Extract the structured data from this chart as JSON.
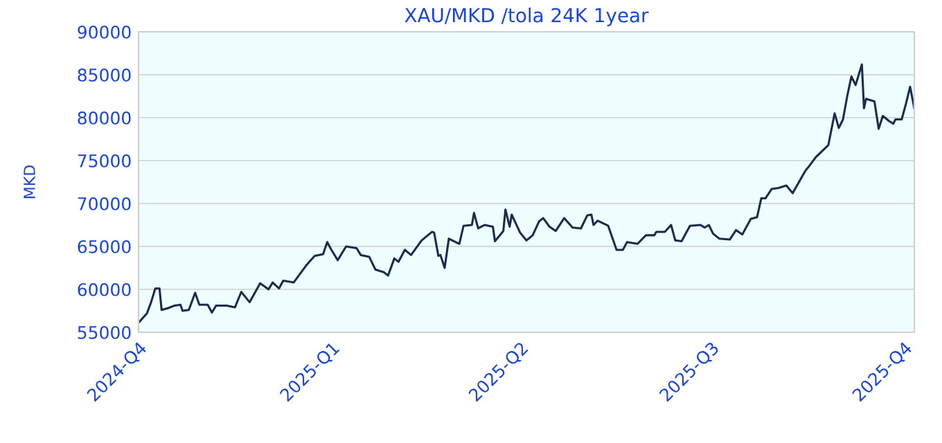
{
  "chart_data": {
    "type": "line",
    "title": "XAU/MKD /tola 24K 1year",
    "ylabel": "MKD",
    "x": [
      "2024-10-01",
      "2024-10-05",
      "2024-10-07",
      "2024-10-09",
      "2024-10-11",
      "2024-10-12",
      "2024-10-15",
      "2024-10-18",
      "2024-10-21",
      "2024-10-22",
      "2024-10-25",
      "2024-10-28",
      "2024-10-30",
      "2024-11-03",
      "2024-11-05",
      "2024-11-07",
      "2024-11-12",
      "2024-11-16",
      "2024-11-19",
      "2024-11-23",
      "2024-11-28",
      "2024-12-02",
      "2024-12-04",
      "2024-12-07",
      "2024-12-09",
      "2024-12-14",
      "2024-12-20",
      "2024-12-24",
      "2024-12-28",
      "2024-12-30",
      "2025-01-01",
      "2025-01-04",
      "2025-01-08",
      "2025-01-13",
      "2025-01-15",
      "2025-01-19",
      "2025-01-22",
      "2025-01-26",
      "2025-01-28",
      "2025-01-31",
      "2025-02-02",
      "2025-02-05",
      "2025-02-08",
      "2025-02-13",
      "2025-02-18",
      "2025-02-19",
      "2025-02-21",
      "2025-02-22",
      "2025-02-24",
      "2025-02-26",
      "2025-03-03",
      "2025-03-05",
      "2025-03-09",
      "2025-03-10",
      "2025-03-12",
      "2025-03-15",
      "2025-03-19",
      "2025-03-20",
      "2025-03-24",
      "2025-03-25",
      "2025-03-27",
      "2025-03-28",
      "2025-04-01",
      "2025-04-04",
      "2025-04-07",
      "2025-04-10",
      "2025-04-12",
      "2025-04-15",
      "2025-04-18",
      "2025-04-22",
      "2025-04-26",
      "2025-04-30",
      "2025-05-03",
      "2025-05-05",
      "2025-05-06",
      "2025-05-08",
      "2025-05-13",
      "2025-05-15",
      "2025-05-17",
      "2025-05-20",
      "2025-05-22",
      "2025-05-27",
      "2025-05-31",
      "2025-06-04",
      "2025-06-05",
      "2025-06-09",
      "2025-06-12",
      "2025-06-14",
      "2025-06-17",
      "2025-06-21",
      "2025-06-26",
      "2025-06-28",
      "2025-06-30",
      "2025-07-02",
      "2025-07-05",
      "2025-07-10",
      "2025-07-13",
      "2025-07-16",
      "2025-07-20",
      "2025-07-23",
      "2025-07-25",
      "2025-07-27",
      "2025-07-30",
      "2025-08-02",
      "2025-08-06",
      "2025-08-09",
      "2025-08-12",
      "2025-08-15",
      "2025-08-17",
      "2025-08-20",
      "2025-08-23",
      "2025-08-26",
      "2025-08-29",
      "2025-08-31",
      "2025-09-02",
      "2025-09-04",
      "2025-09-06",
      "2025-09-08",
      "2025-09-11",
      "2025-09-12",
      "2025-09-13",
      "2025-09-17",
      "2025-09-19",
      "2025-09-21",
      "2025-09-24",
      "2025-09-26",
      "2025-09-27",
      "2025-09-30",
      "2025-10-02",
      "2025-10-04",
      "2025-10-06"
    ],
    "series": [
      {
        "color": "#1a2b4c",
        "values": [
          56100,
          57200,
          58500,
          60100,
          60100,
          57600,
          57800,
          58100,
          58200,
          57500,
          57600,
          59600,
          58200,
          58200,
          57300,
          58100,
          58100,
          57900,
          59700,
          58500,
          60700,
          60000,
          60800,
          60100,
          61000,
          60800,
          62800,
          63900,
          64100,
          65500,
          64600,
          63400,
          65000,
          64800,
          64000,
          63800,
          62300,
          62000,
          61600,
          63600,
          63200,
          64600,
          64000,
          65700,
          66700,
          66600,
          63900,
          64000,
          62500,
          65900,
          65300,
          67400,
          67500,
          68900,
          67100,
          67500,
          67300,
          65600,
          66800,
          69300,
          67300,
          68700,
          66600,
          65700,
          66300,
          67900,
          68300,
          67300,
          66800,
          68300,
          67200,
          67100,
          68600,
          68700,
          67500,
          68000,
          67400,
          66000,
          64600,
          64600,
          65500,
          65300,
          66300,
          66300,
          66700,
          66700,
          67500,
          65700,
          65600,
          67400,
          67500,
          67200,
          67500,
          66500,
          65900,
          65800,
          66900,
          66400,
          68200,
          68400,
          70600,
          70600,
          71700,
          71800,
          72100,
          71200,
          72500,
          73800,
          74400,
          75400,
          76100,
          76800,
          80500,
          78800,
          79800,
          82500,
          84800,
          83800,
          86200,
          81100,
          82200,
          81900,
          78700,
          80200,
          79600,
          79300,
          79800,
          79800,
          81600,
          83600,
          81100
        ]
      }
    ],
    "xlim": [
      "2024-10-01",
      "2025-10-06"
    ],
    "xticks": [
      {
        "value": "2024-10-01",
        "label": "2024-Q4"
      },
      {
        "value": "2025-01-01",
        "label": "2025-Q1"
      },
      {
        "value": "2025-04-01",
        "label": "2025-Q2"
      },
      {
        "value": "2025-07-01",
        "label": "2025-Q3"
      },
      {
        "value": "2025-10-01",
        "label": "2025-Q4"
      }
    ],
    "ylim": [
      55000,
      90000
    ],
    "yticks": [
      55000,
      60000,
      65000,
      70000,
      75000,
      80000,
      85000,
      90000
    ],
    "grid": "y",
    "line_style": "solid",
    "marker": "none"
  }
}
